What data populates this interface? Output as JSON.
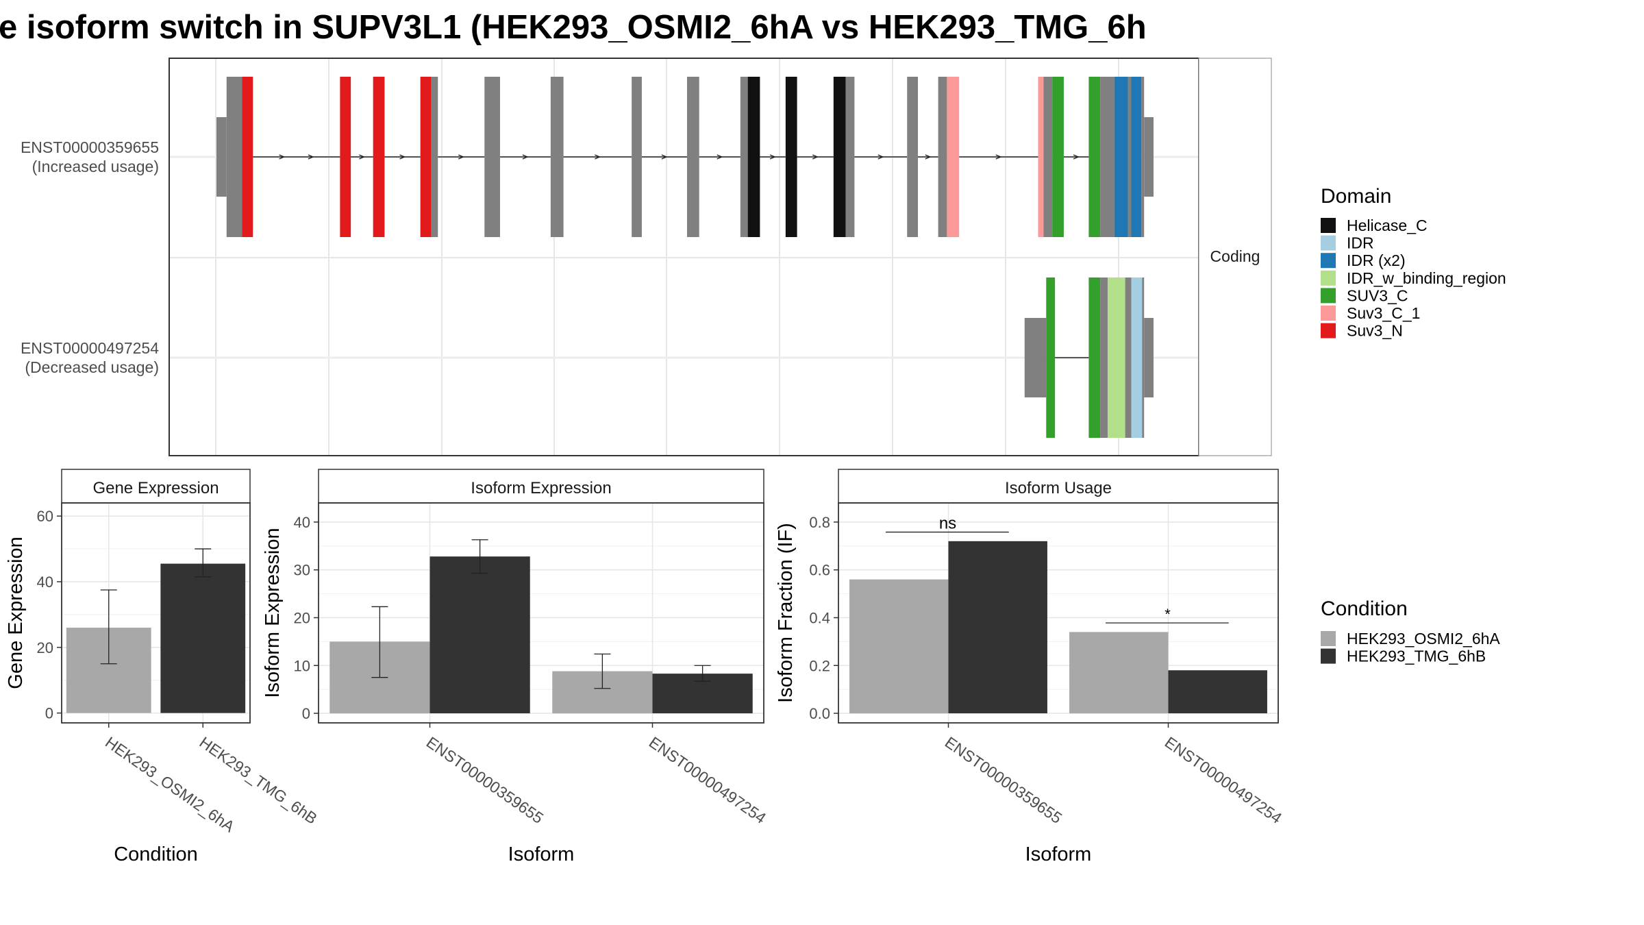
{
  "title": "e isoform switch in SUPV3L1 (HEK293_OSMI2_6hA vs HEK293_TMG_6h",
  "colors": {
    "domain": {
      "Helicase_C": "#111111",
      "IDR": "#a6cee3",
      "IDR (x2)": "#1f78b4",
      "IDR_w_binding_region": "#b2df8a",
      "SUV3_C": "#33a02c",
      "Suv3_C_1": "#fb9a99",
      "Suv3_N": "#e31a1c",
      "none": "#808080"
    },
    "condition": {
      "HEK293_OSMI2_6hA": "#a8a8a8",
      "HEK293_TMG_6hB": "#333333"
    }
  },
  "structure": {
    "strip_label": "Coding",
    "tracks": [
      {
        "id": "ENST00000359655",
        "usage": "(Increased usage)",
        "segments": [
          {
            "s": 0,
            "e": 15,
            "h": "utr",
            "d": "none"
          },
          {
            "s": 15,
            "e": 38,
            "h": "cds",
            "d": "none"
          },
          {
            "s": 38,
            "e": 54,
            "h": "cds",
            "d": "Suv3_N"
          },
          {
            "s": 183,
            "e": 199,
            "h": "cds",
            "d": "Suv3_N"
          },
          {
            "s": 232,
            "e": 249,
            "h": "cds",
            "d": "Suv3_N"
          },
          {
            "s": 302,
            "e": 318,
            "h": "cds",
            "d": "Suv3_N"
          },
          {
            "s": 318,
            "e": 328,
            "h": "cds",
            "d": "none"
          },
          {
            "s": 397,
            "e": 420,
            "h": "cds",
            "d": "none"
          },
          {
            "s": 495,
            "e": 514,
            "h": "cds",
            "d": "none"
          },
          {
            "s": 615,
            "e": 630,
            "h": "cds",
            "d": "none"
          },
          {
            "s": 697,
            "e": 715,
            "h": "cds",
            "d": "none"
          },
          {
            "s": 776,
            "e": 787,
            "h": "cds",
            "d": "none"
          },
          {
            "s": 787,
            "e": 805,
            "h": "cds",
            "d": "Helicase_C"
          },
          {
            "s": 843,
            "e": 860,
            "h": "cds",
            "d": "Helicase_C"
          },
          {
            "s": 914,
            "e": 932,
            "h": "cds",
            "d": "Helicase_C"
          },
          {
            "s": 932,
            "e": 945,
            "h": "cds",
            "d": "none"
          },
          {
            "s": 1023,
            "e": 1039,
            "h": "cds",
            "d": "none"
          },
          {
            "s": 1069,
            "e": 1082,
            "h": "cds",
            "d": "none"
          },
          {
            "s": 1082,
            "e": 1100,
            "h": "cds",
            "d": "Suv3_C_1"
          },
          {
            "s": 1217,
            "e": 1225,
            "h": "cds",
            "d": "Suv3_C_1"
          },
          {
            "s": 1225,
            "e": 1238,
            "h": "cds",
            "d": "none"
          },
          {
            "s": 1238,
            "e": 1255,
            "h": "cds",
            "d": "SUV3_C"
          },
          {
            "s": 1292,
            "e": 1309,
            "h": "cds",
            "d": "SUV3_C"
          },
          {
            "s": 1309,
            "e": 1330,
            "h": "cds",
            "d": "none"
          },
          {
            "s": 1330,
            "e": 1350,
            "h": "cds",
            "d": "IDR (x2)"
          },
          {
            "s": 1350,
            "e": 1355,
            "h": "cds",
            "d": "none"
          },
          {
            "s": 1355,
            "e": 1370,
            "h": "cds",
            "d": "IDR (x2)"
          },
          {
            "s": 1370,
            "e": 1374,
            "h": "cds",
            "d": "none"
          },
          {
            "s": 1374,
            "e": 1388,
            "h": "utr",
            "d": "none"
          }
        ]
      },
      {
        "id": "ENST00000497254",
        "usage": "(Decreased usage)",
        "segments": [
          {
            "s": 1197,
            "e": 1229,
            "h": "utr",
            "d": "none"
          },
          {
            "s": 1229,
            "e": 1242,
            "h": "cds",
            "d": "SUV3_C"
          },
          {
            "s": 1292,
            "e": 1309,
            "h": "cds",
            "d": "SUV3_C"
          },
          {
            "s": 1309,
            "e": 1320,
            "h": "cds",
            "d": "none"
          },
          {
            "s": 1320,
            "e": 1346,
            "h": "cds",
            "d": "IDR_w_binding_region"
          },
          {
            "s": 1346,
            "e": 1355,
            "h": "cds",
            "d": "none"
          },
          {
            "s": 1355,
            "e": 1371,
            "h": "cds",
            "d": "IDR"
          },
          {
            "s": 1371,
            "e": 1374,
            "h": "cds",
            "d": "none"
          },
          {
            "s": 1374,
            "e": 1388,
            "h": "utr",
            "d": "none"
          }
        ]
      }
    ]
  },
  "legends": {
    "domain_title": "Domain",
    "domain_items": [
      "Helicase_C",
      "IDR",
      "IDR (x2)",
      "IDR_w_binding_region",
      "SUV3_C",
      "Suv3_C_1",
      "Suv3_N"
    ],
    "condition_title": "Condition",
    "condition_items": [
      "HEK293_OSMI2_6hA",
      "HEK293_TMG_6hB"
    ]
  },
  "chart_data": [
    {
      "type": "bar",
      "title": "Gene Expression",
      "xlabel": "Condition",
      "ylabel": "Gene Expression",
      "categories": [
        "HEK293_OSMI2_6hA",
        "HEK293_TMG_6hB"
      ],
      "values": [
        26,
        45.5
      ],
      "errors": [
        [
          15,
          37.5
        ],
        [
          41.5,
          50
        ]
      ],
      "ylim": [
        -3,
        64
      ],
      "ticks": [
        0,
        20,
        40,
        60
      ]
    },
    {
      "type": "bar",
      "title": "Isoform Expression",
      "xlabel": "Isoform",
      "ylabel": "Isoform Expression",
      "categories": [
        "ENST00000359655",
        "ENST00000497254"
      ],
      "series": [
        {
          "name": "HEK293_OSMI2_6hA",
          "values": [
            15,
            8.8
          ],
          "errors": [
            [
              7.5,
              22.3
            ],
            [
              5.2,
              12.4
            ]
          ]
        },
        {
          "name": "HEK293_TMG_6hB",
          "values": [
            32.8,
            8.3
          ],
          "errors": [
            [
              29.3,
              36.3
            ],
            [
              6.7,
              10
            ]
          ]
        }
      ],
      "ylim": [
        -2,
        44
      ],
      "ticks": [
        0,
        10,
        20,
        30,
        40
      ]
    },
    {
      "type": "bar",
      "title": "Isoform Usage",
      "xlabel": "Isoform",
      "ylabel": "Isoform Fraction (IF)",
      "categories": [
        "ENST00000359655",
        "ENST00000497254"
      ],
      "series": [
        {
          "name": "HEK293_OSMI2_6hA",
          "values": [
            0.56,
            0.34
          ]
        },
        {
          "name": "HEK293_TMG_6hB",
          "values": [
            0.72,
            0.18
          ]
        }
      ],
      "significance": [
        "ns",
        "*"
      ],
      "ylim": [
        -0.04,
        0.88
      ],
      "ticks": [
        0.0,
        0.2,
        0.4,
        0.6,
        0.8
      ],
      "tick_labels": [
        "0.0",
        "0.2",
        "0.4",
        "0.6",
        "0.8"
      ]
    }
  ]
}
